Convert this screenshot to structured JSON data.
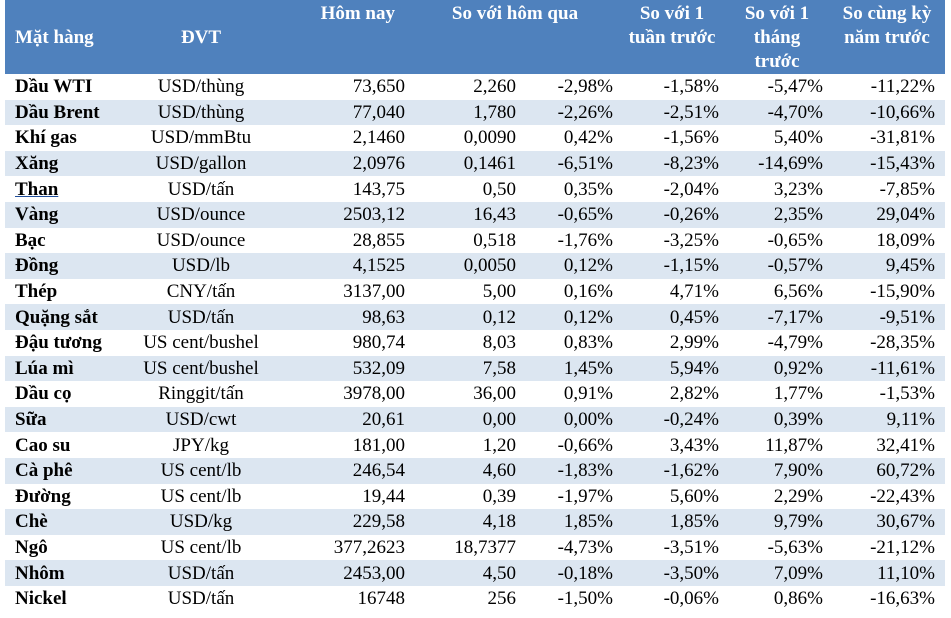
{
  "headers": {
    "item": "Mặt hàng",
    "unit": "ĐVT",
    "today": "Hôm nay",
    "vs_yesterday": "So với hôm qua",
    "vs_week": "So với 1 tuần trước",
    "vs_month": "So với 1 tháng trước",
    "vs_year": "So cùng kỳ năm trước"
  },
  "rows": [
    {
      "name": "Dầu WTI",
      "unit": "USD/thùng",
      "today": "73,650",
      "chg": "2,260",
      "pct": "-2,98%",
      "week": "-1,58%",
      "month": "-5,47%",
      "year": "-11,22%"
    },
    {
      "name": "Dầu Brent",
      "unit": "USD/thùng",
      "today": "77,040",
      "chg": "1,780",
      "pct": "-2,26%",
      "week": "-2,51%",
      "month": "-4,70%",
      "year": "-10,66%"
    },
    {
      "name": "Khí gas",
      "unit": "USD/mmBtu",
      "today": "2,1460",
      "chg": "0,0090",
      "pct": "0,42%",
      "week": "-1,56%",
      "month": "5,40%",
      "year": "-31,81%"
    },
    {
      "name": "Xăng",
      "unit": "USD/gallon",
      "today": "2,0976",
      "chg": "0,1461",
      "pct": "-6,51%",
      "week": "-8,23%",
      "month": "-14,69%",
      "year": "-15,43%"
    },
    {
      "name": "Than",
      "unit": "USD/tấn",
      "today": "143,75",
      "chg": "0,50",
      "pct": "0,35%",
      "week": "-2,04%",
      "month": "3,23%",
      "year": "-7,85%"
    },
    {
      "name": "Vàng",
      "unit": "USD/ounce",
      "today": "2503,12",
      "chg": "16,43",
      "pct": "-0,65%",
      "week": "-0,26%",
      "month": "2,35%",
      "year": "29,04%"
    },
    {
      "name": "Bạc",
      "unit": "USD/ounce",
      "today": "28,855",
      "chg": "0,518",
      "pct": "-1,76%",
      "week": "-3,25%",
      "month": "-0,65%",
      "year": "18,09%"
    },
    {
      "name": "Đồng",
      "unit": "USD/lb",
      "today": "4,1525",
      "chg": "0,0050",
      "pct": "0,12%",
      "week": "-1,15%",
      "month": "-0,57%",
      "year": "9,45%"
    },
    {
      "name": "Thép",
      "unit": "CNY/tấn",
      "today": "3137,00",
      "chg": "5,00",
      "pct": "0,16%",
      "week": "4,71%",
      "month": "6,56%",
      "year": "-15,90%"
    },
    {
      "name": "Quặng sắt",
      "unit": "USD/tấn",
      "today": "98,63",
      "chg": "0,12",
      "pct": "0,12%",
      "week": "0,45%",
      "month": "-7,17%",
      "year": "-9,51%"
    },
    {
      "name": "Đậu tương",
      "unit": "US cent/bushel",
      "today": "980,74",
      "chg": "8,03",
      "pct": "0,83%",
      "week": "2,99%",
      "month": "-4,79%",
      "year": "-28,35%"
    },
    {
      "name": "Lúa mì",
      "unit": "US cent/bushel",
      "today": "532,09",
      "chg": "7,58",
      "pct": "1,45%",
      "week": "5,94%",
      "month": "0,92%",
      "year": "-11,61%"
    },
    {
      "name": "Dầu cọ",
      "unit": "Ringgit/tấn",
      "today": "3978,00",
      "chg": "36,00",
      "pct": "0,91%",
      "week": "2,82%",
      "month": "1,77%",
      "year": "-1,53%"
    },
    {
      "name": "Sữa",
      "unit": "USD/cwt",
      "today": "20,61",
      "chg": "0,00",
      "pct": "0,00%",
      "week": "-0,24%",
      "month": "0,39%",
      "year": "9,11%"
    },
    {
      "name": "Cao su",
      "unit": "JPY/kg",
      "today": "181,00",
      "chg": "1,20",
      "pct": "-0,66%",
      "week": "3,43%",
      "month": "11,87%",
      "year": "32,41%"
    },
    {
      "name": "Cà phê",
      "unit": "US cent/lb",
      "today": "246,54",
      "chg": "4,60",
      "pct": "-1,83%",
      "week": "-1,62%",
      "month": "7,90%",
      "year": "60,72%"
    },
    {
      "name": "Đường",
      "unit": "US cent/lb",
      "today": "19,44",
      "chg": "0,39",
      "pct": "-1,97%",
      "week": "5,60%",
      "month": "2,29%",
      "year": "-22,43%"
    },
    {
      "name": "Chè",
      "unit": "USD/kg",
      "today": "229,58",
      "chg": "4,18",
      "pct": "1,85%",
      "week": "1,85%",
      "month": "9,79%",
      "year": "30,67%"
    },
    {
      "name": "Ngô",
      "unit": "US cent/lb",
      "today": "377,2623",
      "chg": "18,7377",
      "pct": "-4,73%",
      "week": "-3,51%",
      "month": "-5,63%",
      "year": "-21,12%"
    },
    {
      "name": "Nhôm",
      "unit": "USD/tấn",
      "today": "2453,00",
      "chg": "4,50",
      "pct": "-0,18%",
      "week": "-3,50%",
      "month": "7,09%",
      "year": "11,10%"
    },
    {
      "name": "Nickel",
      "unit": "USD/tấn",
      "today": "16748",
      "chg": "256",
      "pct": "-1,50%",
      "week": "-0,06%",
      "month": "0,86%",
      "year": "-16,63%"
    }
  ]
}
